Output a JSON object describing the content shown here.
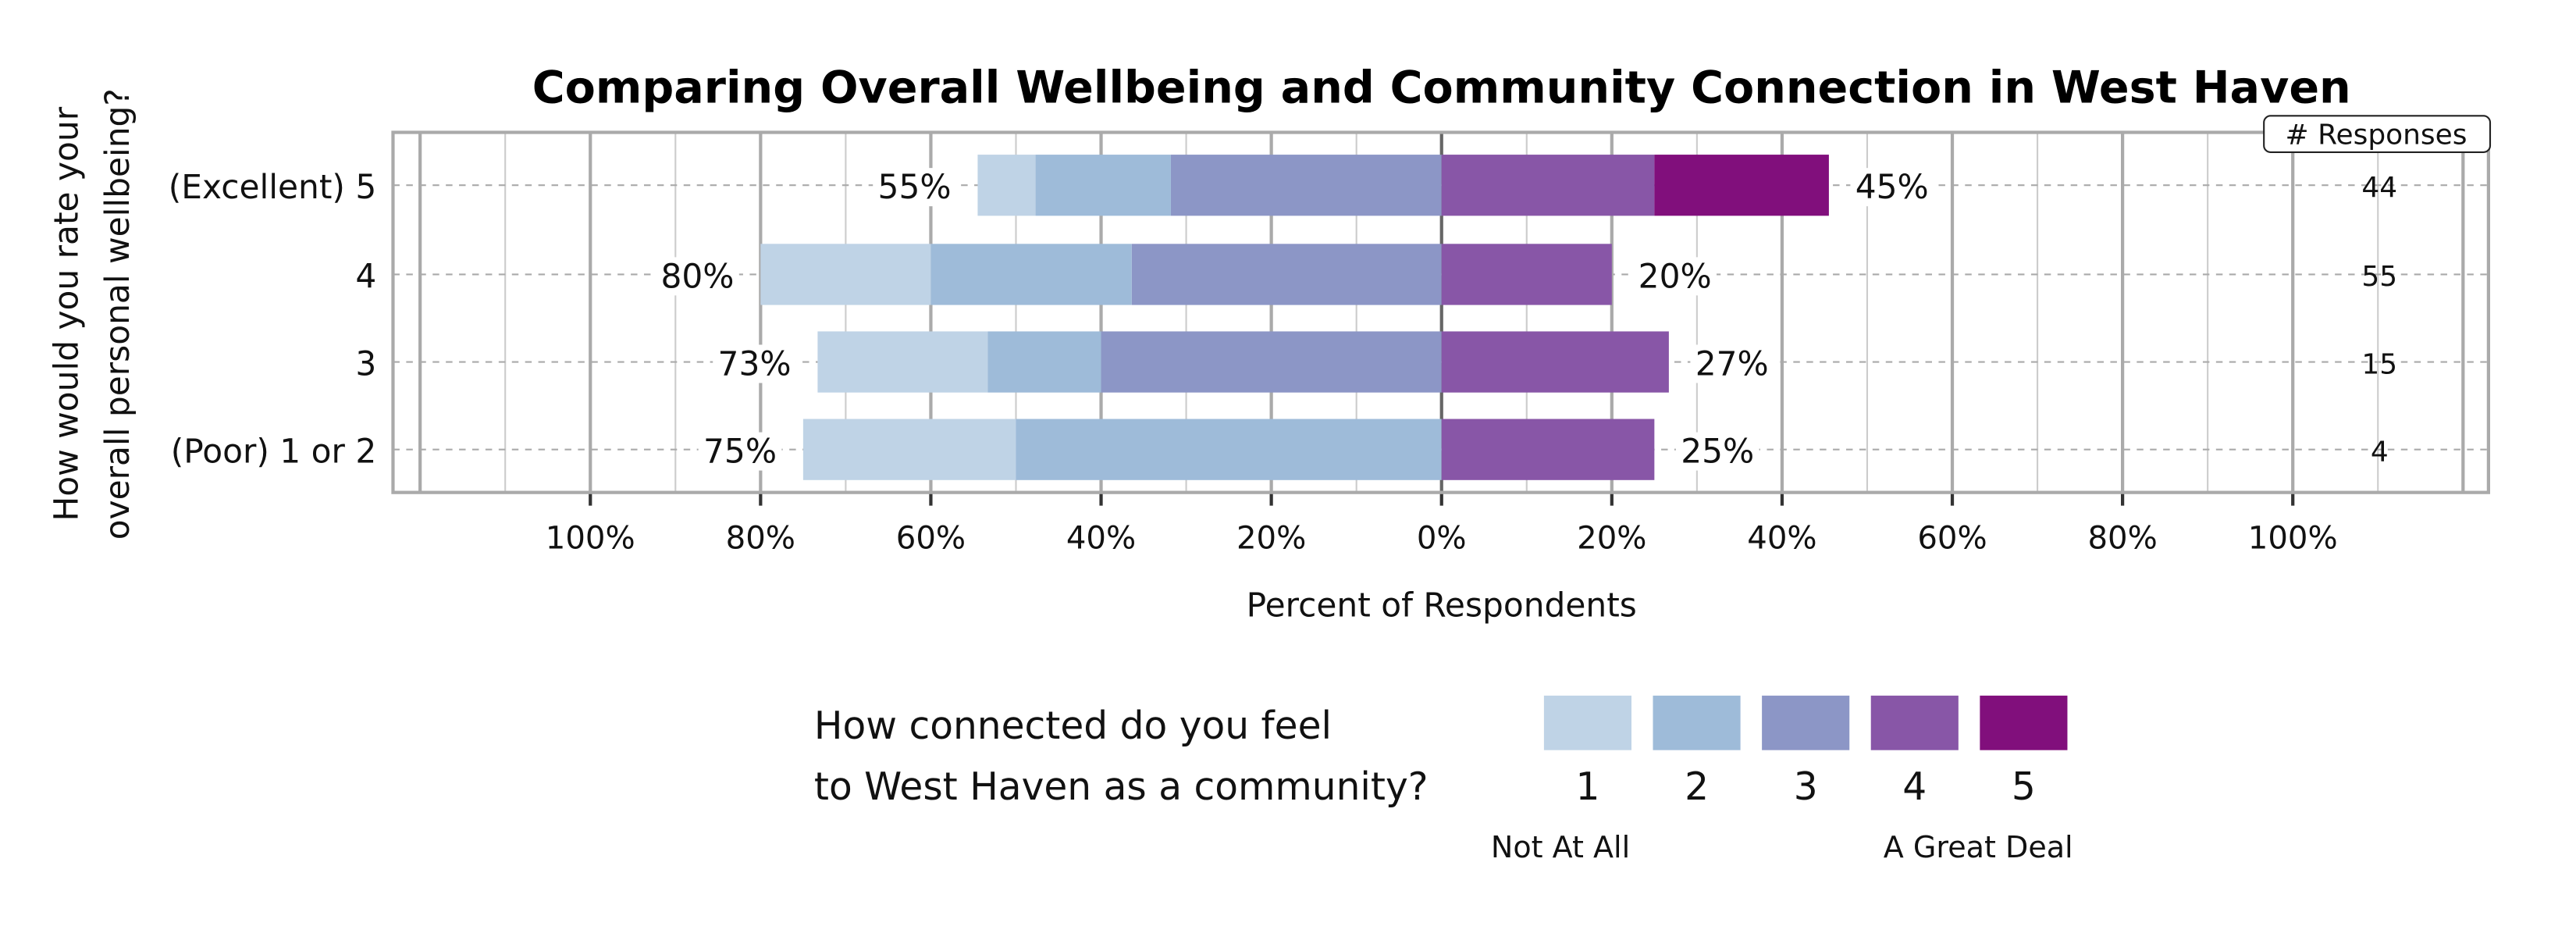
{
  "chart_data": {
    "type": "bar",
    "orientation": "horizontal-diverging-stacked",
    "title": "Comparing Overall Wellbeing and Community Connection in West Haven",
    "ylabel_lines": [
      "How would you rate your",
      "overall personal wellbeing?"
    ],
    "xlabel": "Percent of Respondents",
    "xlim": [
      -100,
      100
    ],
    "x_tick_labels": [
      "100%",
      "80%",
      "60%",
      "40%",
      "20%",
      "0%",
      "20%",
      "40%",
      "60%",
      "80%",
      "100%"
    ],
    "grid": true,
    "count_header": "# Responses",
    "categories": [
      "(Excellent) 5",
      "4",
      "3",
      "(Poor) 1 or 2"
    ],
    "counts": [
      "44",
      "55",
      "15",
      "4"
    ],
    "left_totals": [
      "55%",
      "80%",
      "73%",
      "75%"
    ],
    "right_totals": [
      "45%",
      "20%",
      "27%",
      "25%"
    ],
    "series": [
      {
        "name": "1",
        "side": "left",
        "color": "#bfd3e6",
        "values": [
          6.8,
          20.0,
          20.0,
          25.0
        ]
      },
      {
        "name": "2",
        "side": "left",
        "color": "#9ebbd9",
        "values": [
          15.9,
          23.6,
          13.3,
          50.0
        ]
      },
      {
        "name": "3",
        "side": "left",
        "color": "#8c96c6",
        "values": [
          31.8,
          36.4,
          40.0,
          0
        ]
      },
      {
        "name": "4",
        "side": "right",
        "color": "#8856a7",
        "values": [
          25.0,
          20.0,
          26.7,
          25.0
        ]
      },
      {
        "name": "5",
        "side": "right",
        "color": "#810f7c",
        "values": [
          20.5,
          0,
          0,
          0
        ]
      }
    ],
    "legend": {
      "title_lines": [
        "How connected do you feel",
        "to West Haven as a community?"
      ],
      "low_label": "Not At All",
      "high_label": "A Great Deal",
      "placement": "bottom"
    }
  }
}
